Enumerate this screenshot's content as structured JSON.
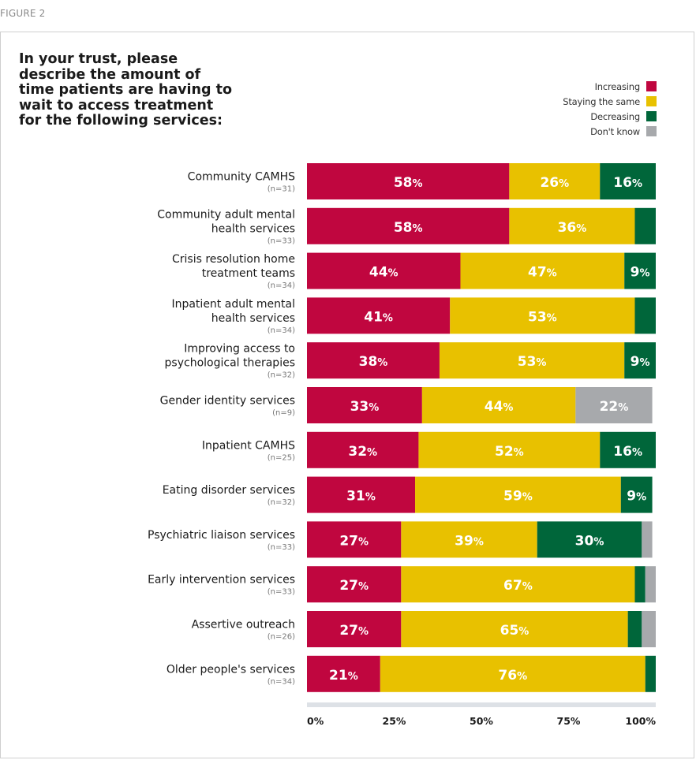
{
  "figure_label": "FIGURE 2",
  "chart_data": {
    "type": "bar",
    "orientation": "horizontal",
    "stacked": true,
    "title": "In your trust, please describe the amount of time patients are having to wait to access treatment for the following services:",
    "xlim": [
      0,
      100
    ],
    "xticks": [
      "0%",
      "25%",
      "50%",
      "75%",
      "100%"
    ],
    "legend_position": "top-right",
    "colors": {
      "Increasing": "#c0063f",
      "Staying the same": "#e8c100",
      "Decreasing": "#00663a",
      "Don't know": "#a7a9ac"
    },
    "series_names": [
      "Increasing",
      "Staying the same",
      "Decreasing",
      "Don't know"
    ],
    "categories": [
      {
        "lines": [
          "Community CAMHS"
        ],
        "n": "(n=31)",
        "values": [
          58,
          26,
          16,
          0
        ],
        "labels": [
          "58%",
          "26%",
          "16%",
          ""
        ]
      },
      {
        "lines": [
          "Community adult mental",
          "health services"
        ],
        "n": "(n=33)",
        "values": [
          58,
          36,
          6,
          0
        ],
        "labels": [
          "58%",
          "36%",
          "",
          ""
        ]
      },
      {
        "lines": [
          "Crisis resolution home",
          "treatment teams"
        ],
        "n": "(n=34)",
        "values": [
          44,
          47,
          9,
          0
        ],
        "labels": [
          "44%",
          "47%",
          "9%",
          ""
        ]
      },
      {
        "lines": [
          "Inpatient adult mental",
          "health services"
        ],
        "n": "(n=34)",
        "values": [
          41,
          53,
          6,
          0
        ],
        "labels": [
          "41%",
          "53%",
          "",
          ""
        ]
      },
      {
        "lines": [
          "Improving access to",
          "psychological therapies"
        ],
        "n": "(n=32)",
        "values": [
          38,
          53,
          9,
          0
        ],
        "labels": [
          "38%",
          "53%",
          "9%",
          ""
        ]
      },
      {
        "lines": [
          "Gender identity services"
        ],
        "n": "(n=9)",
        "values": [
          33,
          44,
          0,
          22
        ],
        "labels": [
          "33%",
          "44%",
          "",
          "22%"
        ]
      },
      {
        "lines": [
          "Inpatient CAMHS"
        ],
        "n": "(n=25)",
        "values": [
          32,
          52,
          16,
          0
        ],
        "labels": [
          "32%",
          "52%",
          "16%",
          ""
        ]
      },
      {
        "lines": [
          "Eating disorder services"
        ],
        "n": "(n=32)",
        "values": [
          31,
          59,
          9,
          0
        ],
        "labels": [
          "31%",
          "59%",
          "9%",
          ""
        ]
      },
      {
        "lines": [
          "Psychiatric liaison services"
        ],
        "n": "(n=33)",
        "values": [
          27,
          39,
          30,
          3
        ],
        "labels": [
          "27%",
          "39%",
          "30%",
          ""
        ]
      },
      {
        "lines": [
          "Early intervention services"
        ],
        "n": "(n=33)",
        "values": [
          27,
          67,
          3,
          3
        ],
        "labels": [
          "27%",
          "67%",
          "",
          ""
        ]
      },
      {
        "lines": [
          "Assertive outreach"
        ],
        "n": "(n=26)",
        "values": [
          27,
          65,
          4,
          4
        ],
        "labels": [
          "27%",
          "65%",
          "",
          ""
        ]
      },
      {
        "lines": [
          "Older people's services"
        ],
        "n": "(n=34)",
        "values": [
          21,
          76,
          3,
          0
        ],
        "labels": [
          "21%",
          "76%",
          "",
          ""
        ]
      }
    ]
  }
}
